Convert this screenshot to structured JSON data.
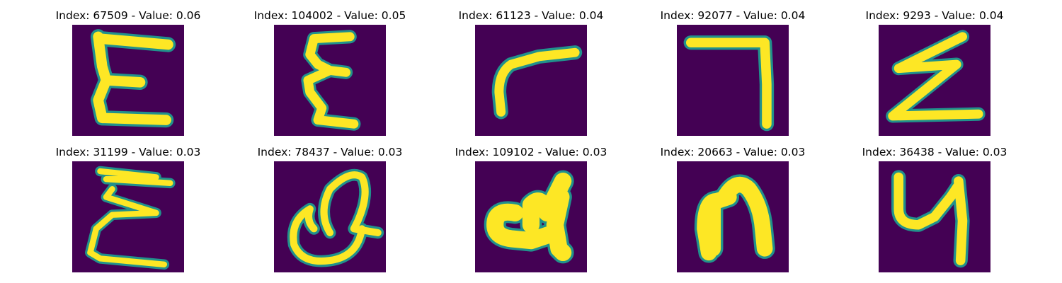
{
  "colors": {
    "background": "#440154",
    "mid": "#21918c",
    "stroke": "#fde725",
    "title": "#000000"
  },
  "panels": [
    {
      "title": "Index: 67509 - Value: 0.06",
      "glyph": "E-like handwritten character"
    },
    {
      "title": "Index: 104002 - Value: 0.05",
      "glyph": "epsilon-like handwritten character"
    },
    {
      "title": "Index: 61123 - Value: 0.04",
      "glyph": "r-like handwritten character"
    },
    {
      "title": "Index: 92077 - Value: 0.04",
      "glyph": "7-like handwritten character"
    },
    {
      "title": "Index: 9293 - Value: 0.04",
      "glyph": "Z-like handwritten character"
    },
    {
      "title": "Index: 31199 - Value: 0.03",
      "glyph": "E-like handwritten character"
    },
    {
      "title": "Index: 78437 - Value: 0.03",
      "glyph": "loop-like handwritten character"
    },
    {
      "title": "Index: 109102 - Value: 0.03",
      "glyph": "4-like handwritten character"
    },
    {
      "title": "Index: 20663 - Value: 0.03",
      "glyph": "n-like handwritten character"
    },
    {
      "title": "Index: 36438 - Value: 0.03",
      "glyph": "4-like handwritten character"
    }
  ]
}
